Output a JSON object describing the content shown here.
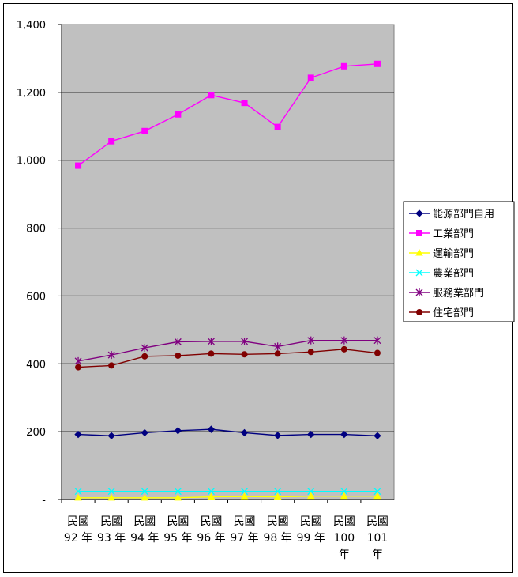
{
  "chart_data": {
    "type": "line",
    "categories": [
      [
        "民國",
        "92 年"
      ],
      [
        "民國",
        "93 年"
      ],
      [
        "民國",
        "94 年"
      ],
      [
        "民國",
        "95 年"
      ],
      [
        "民國",
        "96 年"
      ],
      [
        "民國",
        "97 年"
      ],
      [
        "民國",
        "98 年"
      ],
      [
        "民國",
        "99 年"
      ],
      [
        "民國",
        "100",
        "年"
      ],
      [
        "民國",
        "101",
        "年"
      ]
    ],
    "ylim": [
      0,
      1400
    ],
    "yticks": [
      0,
      200,
      400,
      600,
      800,
      1000,
      1200,
      1400
    ],
    "ytick_labels": [
      "-",
      "200",
      "400",
      "600",
      "800",
      "1,000",
      "1,200",
      "1,400"
    ],
    "grid": true,
    "plot_background": "#c0c0c0",
    "legend_position": "right",
    "series": [
      {
        "name": "能源部門自用",
        "color": "#000080",
        "marker": "diamond",
        "values": [
          192,
          188,
          197,
          203,
          207,
          197,
          189,
          192,
          192,
          188
        ]
      },
      {
        "name": "工業部門",
        "color": "#ff00ff",
        "marker": "square",
        "values": [
          984,
          1056,
          1086,
          1135,
          1192,
          1169,
          1098,
          1243,
          1277,
          1284
        ]
      },
      {
        "name": "運輸部門",
        "color": "#ffff00",
        "marker": "triangle",
        "values": [
          5,
          5,
          5,
          5,
          8,
          9,
          8,
          10,
          10,
          10
        ]
      },
      {
        "name": "農業部門",
        "color": "#00ffff",
        "marker": "x",
        "values": [
          24,
          24,
          24,
          24,
          24,
          24,
          24,
          24,
          24,
          24
        ]
      },
      {
        "name": "服務業部門",
        "color": "#800080",
        "marker": "star",
        "values": [
          408,
          426,
          447,
          465,
          466,
          466,
          451,
          469,
          469,
          469
        ]
      },
      {
        "name": "住宅部門",
        "color": "#800000",
        "marker": "circle",
        "values": [
          390,
          395,
          422,
          424,
          430,
          428,
          430,
          435,
          443,
          432
        ]
      }
    ]
  }
}
